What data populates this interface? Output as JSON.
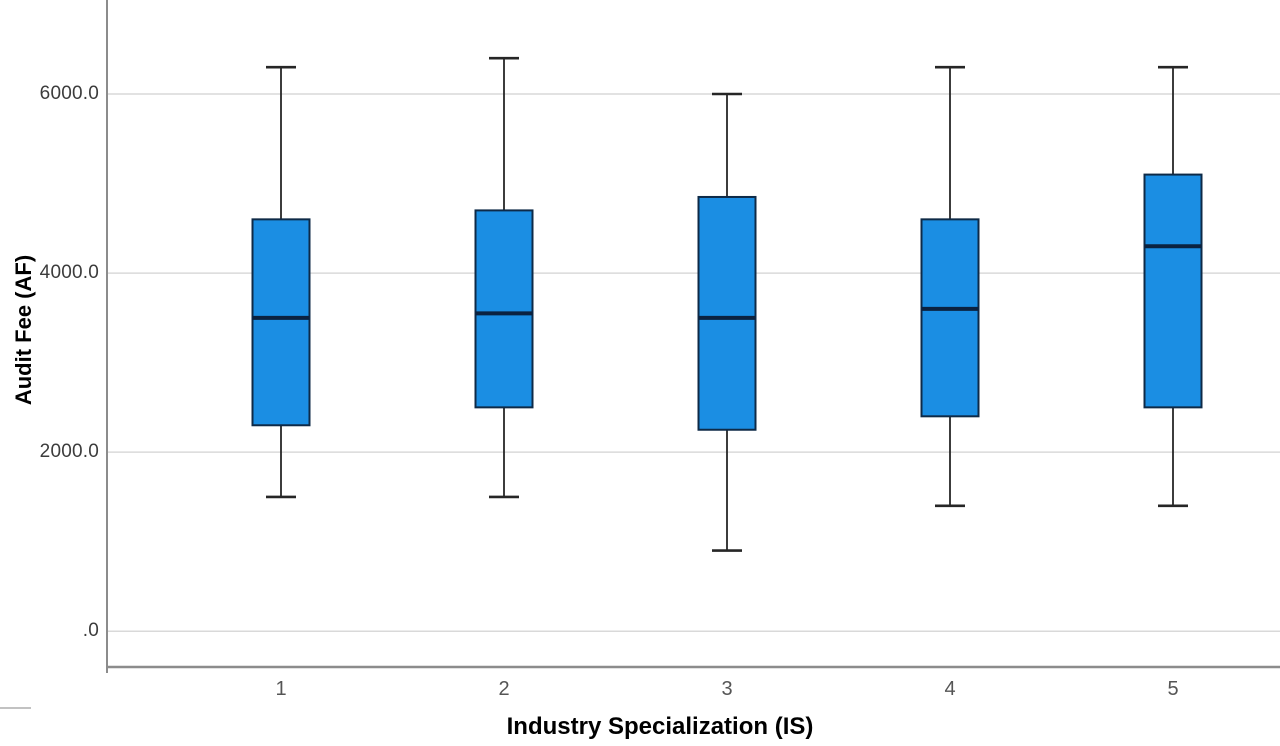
{
  "page": {
    "background": "#ffffff"
  },
  "chart_data": {
    "type": "boxplot",
    "title": "",
    "xlabel": "Industry Specialization (IS)",
    "ylabel": "Audit Fee (AF)",
    "categories": [
      "1",
      "2",
      "3",
      "4",
      "5"
    ],
    "series": [
      {
        "category": "1",
        "whisker_low": 1500,
        "q1": 2300,
        "median": 3500,
        "q3": 4600,
        "whisker_high": 6300
      },
      {
        "category": "2",
        "whisker_low": 1500,
        "q1": 2500,
        "median": 3550,
        "q3": 4700,
        "whisker_high": 6400
      },
      {
        "category": "3",
        "whisker_low": 900,
        "q1": 2250,
        "median": 3500,
        "q3": 4850,
        "whisker_high": 6000
      },
      {
        "category": "4",
        "whisker_low": 1400,
        "q1": 2400,
        "median": 3600,
        "q3": 4600,
        "whisker_high": 6300
      },
      {
        "category": "5",
        "whisker_low": 1400,
        "q1": 2500,
        "median": 4300,
        "q3": 5100,
        "whisker_high": 6300
      }
    ],
    "yticks": [
      {
        "value": 6000,
        "label": "6000.0"
      },
      {
        "value": 4000,
        "label": "4000.0"
      },
      {
        "value": 2000,
        "label": "2000.0"
      },
      {
        "value": 0,
        "label": ".0"
      }
    ],
    "ylim": [
      -400,
      7050
    ],
    "grid": "horizontal-only",
    "legend": "none",
    "colors": {
      "box_fill": "#1b8ee3",
      "box_border": "#0e2a47",
      "median": "#0b2240",
      "whisker": "#262626",
      "gridline": "#d9d9d9",
      "axis_frame": "#8c8c8c",
      "y_tick_label": "#3c3c3c",
      "x_tick_label": "#555555",
      "axis_title": "#000000"
    }
  }
}
